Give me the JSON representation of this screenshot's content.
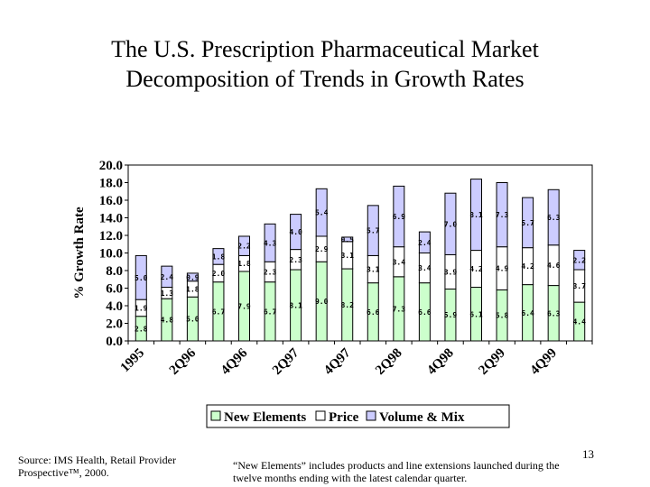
{
  "title_line1": "The U.S. Prescription Pharmaceutical Market",
  "title_line2": "Decomposition of Trends in Growth Rates",
  "source": "Source: IMS Health, Retail Provider Prospective™, 2000.",
  "footnote": "“New Elements” includes products and line extensions launched during the twelve months ending with the latest calendar quarter.",
  "page_number": "13",
  "chart_data": {
    "type": "bar",
    "stacked": true,
    "ylabel": "% Growth Rate",
    "ylim": [
      0,
      20
    ],
    "yticks": [
      "0.0",
      "2.0",
      "4.0",
      "6.0",
      "8.0",
      "10.0",
      "12.0",
      "14.0",
      "16.0",
      "18.0",
      "20.0"
    ],
    "categories": [
      "1995",
      "",
      "2Q96",
      "",
      "4Q96",
      "",
      "2Q97",
      "",
      "4Q97",
      "",
      "2Q98",
      "",
      "4Q98",
      "",
      "2Q99",
      "",
      "4Q99",
      ""
    ],
    "legend_position": "bottom",
    "grid": false,
    "series": [
      {
        "name": "New Elements",
        "color": "#ccffcc",
        "values": [
          2.8,
          4.8,
          5.0,
          6.7,
          7.9,
          6.7,
          8.1,
          9.0,
          8.2,
          6.6,
          7.3,
          6.6,
          5.9,
          6.1,
          5.8,
          6.4,
          6.3,
          4.4
        ]
      },
      {
        "name": "Price",
        "color": "#ffffff",
        "values": [
          1.9,
          1.3,
          1.8,
          2.0,
          1.8,
          2.3,
          2.3,
          2.9,
          3.1,
          3.1,
          3.4,
          3.4,
          3.9,
          4.2,
          4.9,
          4.2,
          4.6,
          3.7
        ]
      },
      {
        "name": "Volume & Mix",
        "color": "#ccccff",
        "values": [
          5.0,
          2.4,
          0.9,
          1.8,
          2.2,
          4.3,
          4.0,
          5.4,
          0.5,
          5.7,
          6.9,
          2.4,
          7.0,
          8.1,
          7.3,
          5.7,
          6.3,
          2.2
        ]
      }
    ]
  }
}
